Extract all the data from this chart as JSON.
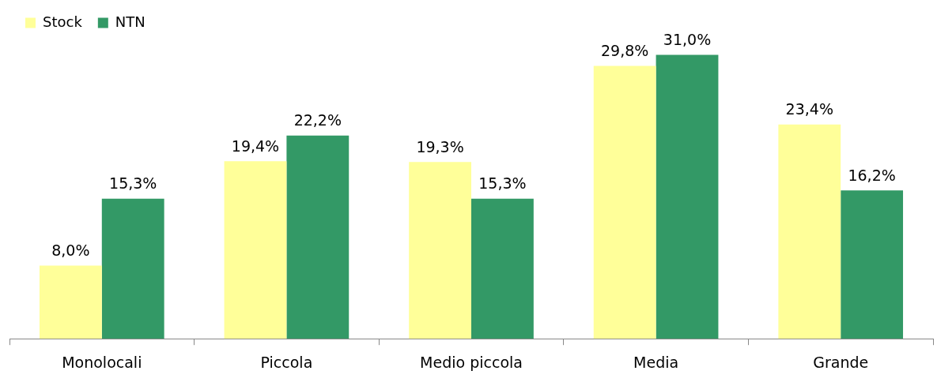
{
  "chart_data": {
    "type": "bar",
    "categories": [
      "Monolocali",
      "Piccola",
      "Medio piccola",
      "Media",
      "Grande"
    ],
    "series": [
      {
        "name": "Stock",
        "color": "#ffff99",
        "values": [
          8.0,
          19.4,
          19.3,
          29.8,
          23.4
        ],
        "value_labels": [
          "8,0%",
          "19,4%",
          "19,3%",
          "29,8%",
          "23,4%"
        ]
      },
      {
        "name": "NTN",
        "color": "#339966",
        "values": [
          15.3,
          22.2,
          15.3,
          31.0,
          16.2
        ],
        "value_labels": [
          "15,3%",
          "22,2%",
          "15,3%",
          "31,0%",
          "16,2%"
        ]
      }
    ],
    "legend": "top left",
    "grid": false
  }
}
